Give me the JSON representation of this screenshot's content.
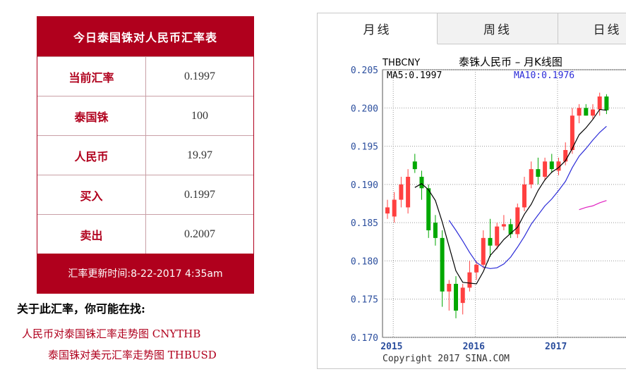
{
  "rate_table": {
    "title": "今日泰国铢对人民币汇率表",
    "rows": [
      {
        "label": "当前汇率",
        "value": "0.1997"
      },
      {
        "label": "泰国铢",
        "value": "100"
      },
      {
        "label": "人民币",
        "value": "19.97"
      },
      {
        "label": "买入",
        "value": "0.1997"
      },
      {
        "label": "卖出",
        "value": "0.2007"
      }
    ],
    "updated": "汇率更新时间:8-22-2017 4:35am"
  },
  "related": {
    "title": "关于此汇率，你可能在找:",
    "links": [
      "人民币对泰国铢汇率走势图 CNYTHB",
      "泰国铢对美元汇率走势图 THBUSD"
    ]
  },
  "tabs": [
    "月线",
    "周线",
    "日线"
  ],
  "colors": {
    "brand": "#b0001d",
    "up": "#ff4040",
    "down": "#00a800",
    "ma5": "#000000",
    "ma10": "#2c2cd8",
    "ma20": "#e020c0",
    "axis": "#2c4f9e"
  },
  "chart_data": {
    "type": "candlestick",
    "symbol": "THBCNY",
    "title": "泰铢人民币 – 月K线图",
    "ma5_label": "MA5:0.1997",
    "ma10_label": "MA10:0.1976",
    "copyright": "Copyright 2017 SINA.COM",
    "ylim": [
      0.17,
      0.205
    ],
    "yticks": [
      "0.205",
      "0.200",
      "0.195",
      "0.190",
      "0.185",
      "0.180",
      "0.175",
      "0.170"
    ],
    "xticks": [
      {
        "label": "2015",
        "index": 1
      },
      {
        "label": "2016",
        "index": 13
      },
      {
        "label": "2017",
        "index": 25
      }
    ],
    "candles": [
      {
        "o": 0.1862,
        "h": 0.188,
        "l": 0.1855,
        "c": 0.187
      },
      {
        "o": 0.1858,
        "h": 0.189,
        "l": 0.185,
        "c": 0.188
      },
      {
        "o": 0.188,
        "h": 0.191,
        "l": 0.187,
        "c": 0.19
      },
      {
        "o": 0.187,
        "h": 0.192,
        "l": 0.1862,
        "c": 0.191
      },
      {
        "o": 0.193,
        "h": 0.194,
        "l": 0.1915,
        "c": 0.192
      },
      {
        "o": 0.191,
        "h": 0.1918,
        "l": 0.188,
        "c": 0.1895
      },
      {
        "o": 0.1895,
        "h": 0.19,
        "l": 0.183,
        "c": 0.184
      },
      {
        "o": 0.185,
        "h": 0.186,
        "l": 0.182,
        "c": 0.183
      },
      {
        "o": 0.183,
        "h": 0.184,
        "l": 0.174,
        "c": 0.176
      },
      {
        "o": 0.176,
        "h": 0.1775,
        "l": 0.1735,
        "c": 0.177
      },
      {
        "o": 0.177,
        "h": 0.178,
        "l": 0.1725,
        "c": 0.1735
      },
      {
        "o": 0.1745,
        "h": 0.177,
        "l": 0.173,
        "c": 0.1765
      },
      {
        "o": 0.1765,
        "h": 0.18,
        "l": 0.176,
        "c": 0.1785
      },
      {
        "o": 0.1785,
        "h": 0.18,
        "l": 0.1775,
        "c": 0.1795
      },
      {
        "o": 0.1795,
        "h": 0.184,
        "l": 0.179,
        "c": 0.183
      },
      {
        "o": 0.183,
        "h": 0.1855,
        "l": 0.1805,
        "c": 0.182
      },
      {
        "o": 0.182,
        "h": 0.185,
        "l": 0.1815,
        "c": 0.1845
      },
      {
        "o": 0.1845,
        "h": 0.186,
        "l": 0.184,
        "c": 0.1848
      },
      {
        "o": 0.1848,
        "h": 0.1855,
        "l": 0.183,
        "c": 0.1835
      },
      {
        "o": 0.1835,
        "h": 0.1875,
        "l": 0.183,
        "c": 0.187
      },
      {
        "o": 0.187,
        "h": 0.191,
        "l": 0.1865,
        "c": 0.19
      },
      {
        "o": 0.19,
        "h": 0.193,
        "l": 0.1895,
        "c": 0.192
      },
      {
        "o": 0.192,
        "h": 0.1935,
        "l": 0.19,
        "c": 0.191
      },
      {
        "o": 0.191,
        "h": 0.1935,
        "l": 0.1905,
        "c": 0.193
      },
      {
        "o": 0.193,
        "h": 0.194,
        "l": 0.1915,
        "c": 0.192
      },
      {
        "o": 0.1918,
        "h": 0.1935,
        "l": 0.1912,
        "c": 0.193
      },
      {
        "o": 0.193,
        "h": 0.1955,
        "l": 0.1925,
        "c": 0.1945
      },
      {
        "o": 0.1945,
        "h": 0.2,
        "l": 0.194,
        "c": 0.199
      },
      {
        "o": 0.199,
        "h": 0.2005,
        "l": 0.198,
        "c": 0.2
      },
      {
        "o": 0.2,
        "h": 0.2005,
        "l": 0.199,
        "c": 0.199
      },
      {
        "o": 0.199,
        "h": 0.2005,
        "l": 0.1985,
        "c": 0.1998
      },
      {
        "o": 0.1998,
        "h": 0.202,
        "l": 0.199,
        "c": 0.2015
      },
      {
        "o": 0.2015,
        "h": 0.2018,
        "l": 0.1992,
        "c": 0.1997
      }
    ],
    "ma5": [
      null,
      null,
      null,
      null,
      0.1896,
      0.1901,
      0.1893,
      0.1879,
      0.1851,
      0.1819,
      0.1787,
      0.1772,
      0.1771,
      0.177,
      0.1786,
      0.1807,
      0.1817,
      0.1828,
      0.1836,
      0.1844,
      0.1861,
      0.1874,
      0.1892,
      0.1906,
      0.1916,
      0.1922,
      0.1931,
      0.1947,
      0.1965,
      0.1974,
      0.1985,
      0.1998,
      0.1997
    ],
    "ma10": [
      null,
      null,
      null,
      null,
      null,
      null,
      null,
      null,
      null,
      0.1853,
      0.184,
      0.1826,
      0.1811,
      0.1798,
      0.1792,
      0.179,
      0.1791,
      0.1796,
      0.1805,
      0.1818,
      0.1832,
      0.1848,
      0.186,
      0.1872,
      0.1881,
      0.1892,
      0.1904,
      0.1922,
      0.1937,
      0.1947,
      0.1958,
      0.1968,
      0.1976
    ],
    "ma20_segment": [
      0.1867,
      0.187,
      0.1872,
      0.1876,
      0.1879
    ]
  }
}
